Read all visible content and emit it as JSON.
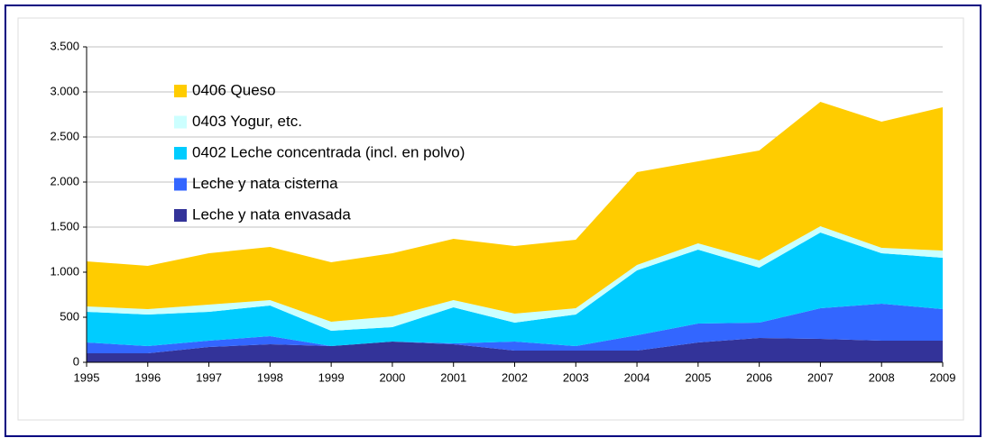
{
  "chart_data": {
    "type": "stacked_area",
    "categories": [
      "1995",
      "1996",
      "1997",
      "1998",
      "1999",
      "2000",
      "2001",
      "2002",
      "2003",
      "2004",
      "2005",
      "2006",
      "2007",
      "2008",
      "2009"
    ],
    "series": [
      {
        "name": "Leche y nata envasada",
        "color": "#333399",
        "values": [
          100,
          100,
          170,
          200,
          180,
          230,
          200,
          130,
          130,
          130,
          220,
          270,
          260,
          240,
          240
        ]
      },
      {
        "name": "Leche y nata cisterna",
        "color": "#3366ff",
        "values": [
          120,
          80,
          70,
          90,
          0,
          0,
          10,
          100,
          50,
          170,
          210,
          170,
          340,
          410,
          350
        ]
      },
      {
        "name": "0402 Leche concentrada (incl. en polvo)",
        "color": "#00ccff",
        "values": [
          340,
          350,
          320,
          340,
          170,
          160,
          400,
          210,
          350,
          720,
          820,
          610,
          840,
          560,
          570
        ]
      },
      {
        "name": "0403 Yogur, etc.",
        "color": "#ccffff",
        "values": [
          60,
          60,
          80,
          60,
          100,
          120,
          80,
          100,
          70,
          60,
          70,
          80,
          70,
          60,
          80
        ]
      },
      {
        "name": "0406 Queso",
        "color": "#ffcc00",
        "values": [
          500,
          480,
          570,
          590,
          660,
          700,
          680,
          750,
          760,
          1030,
          910,
          1220,
          1380,
          1400,
          1590
        ]
      }
    ],
    "ylim": [
      0,
      3500
    ],
    "yticks": [
      0,
      500,
      {
        "value": 1000,
        "label": "1.000"
      },
      {
        "value": 1500,
        "label": "1.500"
      },
      {
        "value": 2000,
        "label": "2.000"
      },
      {
        "value": 2500,
        "label": "2.500"
      },
      {
        "value": 3000,
        "label": "3.000"
      },
      {
        "value": 3500,
        "label": "3.500"
      }
    ],
    "grid": true,
    "legend": "top-left"
  }
}
